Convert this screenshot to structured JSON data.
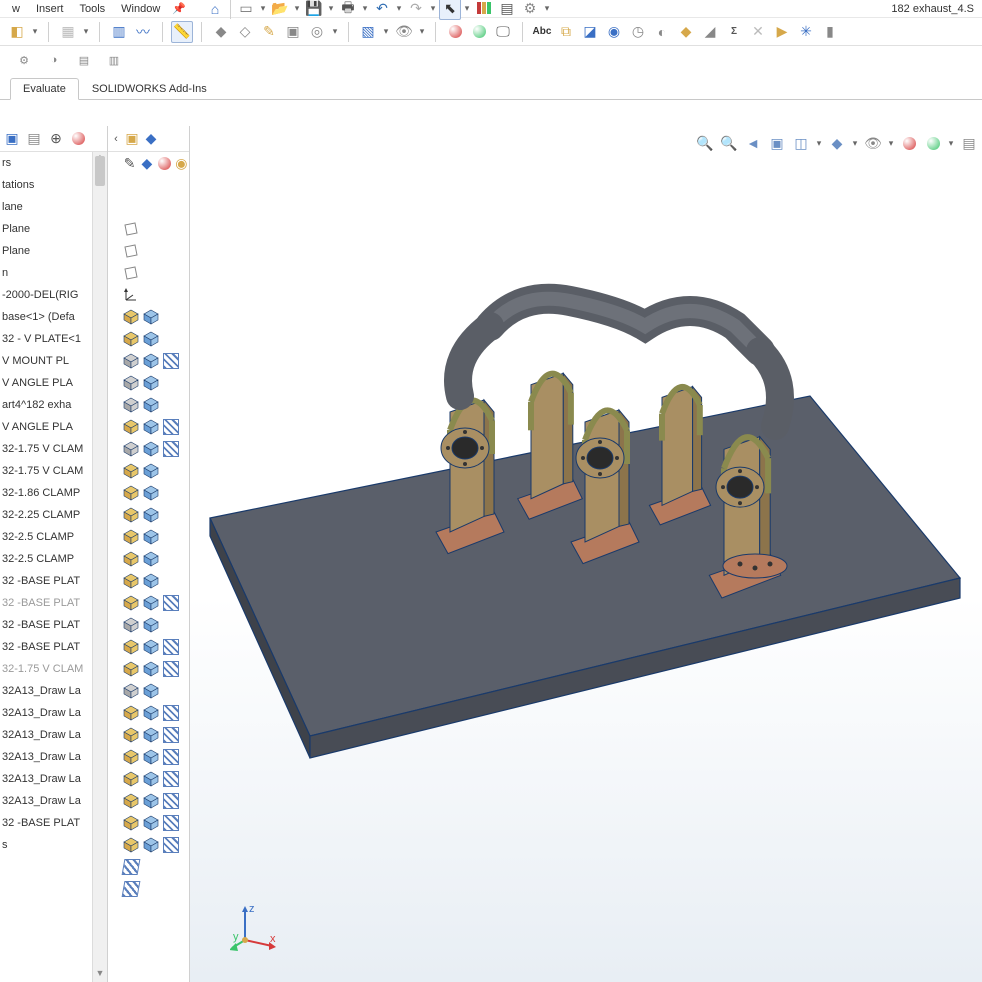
{
  "window": {
    "title": "182 exhaust_4.S"
  },
  "menubar": {
    "items": [
      "w",
      "Insert",
      "Tools",
      "Window"
    ]
  },
  "colors": {
    "bg": "#ffffff",
    "viewport_grad_top": "#ffffff",
    "viewport_grad_bot": "#e8eef4",
    "border": "#d0d0d0",
    "tree_text": "#333333",
    "muted_text": "#9a9a9a",
    "highlight_border": "#9cb4d8",
    "highlight_fill": "#e8f0fb"
  },
  "main_toolbar": [
    {
      "name": "home-icon",
      "glyph": "⌂",
      "dropdown": false,
      "color": "#3a6fc4"
    },
    {
      "name": "sep"
    },
    {
      "name": "new-doc-icon",
      "glyph": "▭",
      "dropdown": true,
      "color": "#777"
    },
    {
      "name": "open-folder-icon",
      "glyph": "📂",
      "dropdown": true,
      "color": "#d28a1b"
    },
    {
      "name": "save-icon",
      "glyph": "💾",
      "dropdown": true,
      "color": "#2f6db3"
    },
    {
      "name": "print-icon",
      "glyph": "🖶",
      "dropdown": true,
      "color": "#555"
    },
    {
      "name": "undo-icon",
      "glyph": "↶",
      "dropdown": true,
      "color": "#2f6db3"
    },
    {
      "name": "redo-icon",
      "glyph": "↷",
      "dropdown": true,
      "color": "#aaa"
    },
    {
      "name": "select-icon",
      "glyph": "⬉",
      "dropdown": true,
      "boxed": true,
      "color": "#333"
    },
    {
      "name": "rebuild-icon",
      "glyph": "❘",
      "dropdown": false,
      "color": "#c43a3a",
      "extra": "green"
    },
    {
      "name": "options-doc-icon",
      "glyph": "▤",
      "dropdown": false,
      "color": "#555"
    },
    {
      "name": "settings-gear-icon",
      "glyph": "⚙",
      "dropdown": true,
      "color": "#888"
    }
  ],
  "second_toolbar_groups": [
    [
      {
        "name": "edit-component-icon",
        "glyph": "◧",
        "color": "#d6a84a"
      },
      {
        "name": "flyout-dropdown",
        "glyph": "▾",
        "small": true
      }
    ],
    [
      {
        "name": "linear-pattern-icon",
        "glyph": "▦",
        "color": "#bbb"
      },
      {
        "name": "flyout-dropdown",
        "glyph": "▾",
        "small": true
      }
    ],
    [
      {
        "name": "mirror-icon",
        "glyph": "▥",
        "color": "#3a6fc4"
      },
      {
        "name": "sketch-curve-icon",
        "glyph": "〰",
        "color": "#3a6fc4"
      }
    ],
    [
      {
        "name": "measure-icon",
        "glyph": "📏",
        "color": "#d6a84a",
        "boxed": true
      }
    ],
    [
      {
        "name": "interference-icon",
        "glyph": "◆",
        "color": "#888"
      },
      {
        "name": "clearance-icon",
        "glyph": "◇",
        "color": "#888"
      },
      {
        "name": "mass-props-icon",
        "glyph": "✎",
        "color": "#d6a84a"
      },
      {
        "name": "section-props-icon",
        "glyph": "▣",
        "color": "#888"
      },
      {
        "name": "sensor-icon",
        "glyph": "◎",
        "color": "#888"
      },
      {
        "name": "flyout-dropdown",
        "glyph": "▾",
        "small": true
      }
    ],
    [
      {
        "name": "assembly-viz-icon",
        "glyph": "▧",
        "color": "#3a6fc4"
      },
      {
        "name": "flyout-dropdown",
        "glyph": "▾",
        "small": true
      },
      {
        "name": "hide-show-icon",
        "glyph": "👁",
        "color": "#888"
      },
      {
        "name": "flyout-dropdown",
        "glyph": "▾",
        "small": true
      }
    ],
    [
      {
        "name": "appearance-icon",
        "glyph": "●",
        "color": "#d63a3a",
        "grad": true
      },
      {
        "name": "scene-icon",
        "glyph": "●",
        "color": "#3ac46a",
        "grad": true
      },
      {
        "name": "display-icon",
        "glyph": "🖵",
        "color": "#555"
      }
    ],
    [
      {
        "name": "abc-spellcheck-icon",
        "glyph": "Abc",
        "text": true,
        "color": "#333"
      },
      {
        "name": "compare-icon",
        "glyph": "⧉",
        "color": "#d6a84a"
      },
      {
        "name": "check-icon",
        "glyph": "◪",
        "color": "#3a6fc4"
      },
      {
        "name": "deviation-icon",
        "glyph": "◉",
        "color": "#3a6fc4"
      },
      {
        "name": "clock-icon",
        "glyph": "◷",
        "color": "#888"
      },
      {
        "name": "zebra-icon",
        "glyph": "◐",
        "color": "#888"
      },
      {
        "name": "curvature-icon",
        "glyph": "◆",
        "color": "#d6a84a"
      },
      {
        "name": "draft-icon",
        "glyph": "◢",
        "color": "#888"
      },
      {
        "name": "sigma-icon",
        "glyph": "Σ",
        "color": "#555",
        "text": true
      },
      {
        "name": "sym-check-icon",
        "glyph": "✕",
        "color": "#bbb"
      },
      {
        "name": "import-diag-icon",
        "glyph": "▶",
        "color": "#d6a84a"
      },
      {
        "name": "thickness-icon",
        "glyph": "✳",
        "color": "#3a6fc4"
      },
      {
        "name": "compare-geom-icon",
        "glyph": "▮",
        "color": "#888"
      }
    ]
  ],
  "small_row": [
    {
      "name": "gear-small-icon",
      "glyph": "⚙"
    },
    {
      "name": "motor-icon",
      "glyph": "◑"
    },
    {
      "name": "link-icon",
      "glyph": "▤"
    },
    {
      "name": "spring-icon",
      "glyph": "▥"
    }
  ],
  "ribbon_tabs": [
    {
      "name": "tab-prev",
      "label": ""
    },
    {
      "name": "tab-evaluate",
      "label": "Evaluate",
      "active": true
    },
    {
      "name": "tab-addins",
      "label": "SOLIDWORKS Add-Ins",
      "active": false
    }
  ],
  "tree_header_icons": [
    {
      "name": "feature-manager-icon",
      "glyph": "▣",
      "color": "#3a6fc4"
    },
    {
      "name": "property-manager-icon",
      "glyph": "▤",
      "color": "#888"
    },
    {
      "name": "config-manager-icon",
      "glyph": "⊕",
      "color": "#555"
    },
    {
      "name": "appearances-manager-icon",
      "glyph": "●",
      "color": "#d63a3a",
      "grad": true
    }
  ],
  "iconcol_header": [
    {
      "name": "chevron-left-icon",
      "glyph": "‹"
    },
    {
      "name": "display-pane-config-icon",
      "glyph": "▣",
      "color": "#d6a84a"
    },
    {
      "name": "display-pane-cube-icon",
      "glyph": "◆",
      "color": "#3a6fc4"
    }
  ],
  "iconcol_sub": [
    {
      "name": "pencil-small-icon",
      "glyph": "✎",
      "color": "#555"
    },
    {
      "name": "cube-toggle-icon",
      "glyph": "◆",
      "color": "#3a6fc4"
    },
    {
      "name": "sphere-toggle-icon",
      "glyph": "●",
      "color": "#d63a3a",
      "grad": true
    },
    {
      "name": "eye-toggle-icon",
      "glyph": "◉",
      "color": "#d6a84a"
    }
  ],
  "tree": [
    {
      "label": "rs",
      "muted": false,
      "icons": []
    },
    {
      "label": "tations",
      "muted": false,
      "icons": []
    },
    {
      "label": "lane",
      "muted": false,
      "icons": [
        "plane"
      ]
    },
    {
      "label": "Plane",
      "muted": false,
      "icons": [
        "plane"
      ]
    },
    {
      "label": "Plane",
      "muted": false,
      "icons": [
        "plane"
      ]
    },
    {
      "label": "n",
      "muted": false,
      "icons": [
        "origin"
      ]
    },
    {
      "label": "-2000-DEL(RIG",
      "muted": false,
      "icons": [
        "yellow",
        "blue"
      ]
    },
    {
      "label": "base<1> (Defa",
      "muted": false,
      "icons": [
        "yellow",
        "blue"
      ]
    },
    {
      "label": "32 - V PLATE<1",
      "muted": false,
      "icons": [
        "gray",
        "blue",
        "hatch"
      ]
    },
    {
      "label": "V MOUNT PL",
      "muted": false,
      "icons": [
        "gray",
        "blue"
      ]
    },
    {
      "label": "V ANGLE PLA",
      "muted": false,
      "icons": [
        "gray",
        "blue"
      ]
    },
    {
      "label": "art4^182 exha",
      "muted": false,
      "icons": [
        "yellow",
        "blue",
        "hatch"
      ]
    },
    {
      "label": "V ANGLE PLA",
      "muted": false,
      "icons": [
        "gray",
        "blue",
        "hatch"
      ]
    },
    {
      "label": "32-1.75 V CLAM",
      "muted": false,
      "icons": [
        "yellow",
        "blue"
      ]
    },
    {
      "label": "32-1.75 V CLAM",
      "muted": false,
      "icons": [
        "yellow",
        "blue"
      ]
    },
    {
      "label": "32-1.86 CLAMP",
      "muted": false,
      "icons": [
        "yellow",
        "blue"
      ]
    },
    {
      "label": "32-2.25 CLAMP",
      "muted": false,
      "icons": [
        "yellow",
        "blue"
      ]
    },
    {
      "label": "32-2.5 CLAMP",
      "muted": false,
      "icons": [
        "yellow",
        "blue"
      ]
    },
    {
      "label": "32-2.5 CLAMP",
      "muted": false,
      "icons": [
        "yellow",
        "blue"
      ]
    },
    {
      "label": "32 -BASE PLAT",
      "muted": false,
      "icons": [
        "yellow",
        "blue",
        "hatch"
      ]
    },
    {
      "label": "32 -BASE PLAT",
      "muted": true,
      "icons": [
        "gray",
        "blue"
      ]
    },
    {
      "label": "32 -BASE PLAT",
      "muted": false,
      "icons": [
        "yellow",
        "blue",
        "hatch"
      ]
    },
    {
      "label": "32 -BASE PLAT",
      "muted": false,
      "icons": [
        "yellow",
        "blue",
        "hatch"
      ]
    },
    {
      "label": "32-1.75 V CLAM",
      "muted": true,
      "icons": [
        "gray",
        "blue"
      ]
    },
    {
      "label": "32A13_Draw La",
      "muted": false,
      "icons": [
        "yellow",
        "blue",
        "hatch"
      ]
    },
    {
      "label": "32A13_Draw La",
      "muted": false,
      "icons": [
        "yellow",
        "blue",
        "hatch"
      ]
    },
    {
      "label": "32A13_Draw La",
      "muted": false,
      "icons": [
        "yellow",
        "blue",
        "hatch"
      ]
    },
    {
      "label": "32A13_Draw La",
      "muted": false,
      "icons": [
        "yellow",
        "blue",
        "hatch"
      ]
    },
    {
      "label": "32A13_Draw La",
      "muted": false,
      "icons": [
        "yellow",
        "blue",
        "hatch"
      ]
    },
    {
      "label": "32A13_Draw La",
      "muted": false,
      "icons": [
        "yellow",
        "blue",
        "hatch"
      ]
    },
    {
      "label": "32 -BASE PLAT",
      "muted": false,
      "icons": [
        "yellow",
        "blue",
        "hatch"
      ]
    },
    {
      "label": "s",
      "muted": false,
      "icons": [
        "hatchpair"
      ]
    },
    {
      "label": "",
      "muted": false,
      "icons": [
        "hatchpair"
      ]
    }
  ],
  "viewport_toolbar": [
    {
      "name": "zoom-fit-icon",
      "glyph": "🔍",
      "color": "#6a8fc4"
    },
    {
      "name": "zoom-area-icon",
      "glyph": "🔍",
      "color": "#6a8fc4"
    },
    {
      "name": "prev-view-icon",
      "glyph": "◄",
      "color": "#6a8fc4"
    },
    {
      "name": "section-view-icon",
      "glyph": "▣",
      "color": "#6a8fc4"
    },
    {
      "name": "view-orient-icon",
      "glyph": "◫",
      "color": "#6a8fc4"
    },
    {
      "name": "dropdown",
      "glyph": "▾",
      "small": true
    },
    {
      "name": "display-style-icon",
      "glyph": "◆",
      "color": "#6a8fc4"
    },
    {
      "name": "dropdown",
      "glyph": "▾",
      "small": true
    },
    {
      "name": "hide-show-items-icon",
      "glyph": "👁",
      "color": "#888"
    },
    {
      "name": "dropdown",
      "glyph": "▾",
      "small": true
    },
    {
      "name": "edit-appearance-vp-icon",
      "glyph": "●",
      "color": "#d63a3a",
      "grad": true
    },
    {
      "name": "apply-scene-vp-icon",
      "glyph": "●",
      "color": "#3ac46a",
      "grad": true
    },
    {
      "name": "dropdown",
      "glyph": "▾",
      "small": true
    },
    {
      "name": "view-settings-icon",
      "glyph": "▤",
      "color": "#888"
    }
  ],
  "triad": {
    "x_color": "#d63a3a",
    "y_color": "#3ac46a",
    "z_color": "#3a6fc4",
    "labels": [
      "x",
      "y",
      "z"
    ]
  },
  "model": {
    "plate_top_color": "#5a5f6a",
    "plate_side_color": "#3e424a",
    "edge_color": "#1a3a6a",
    "bracket_color": "#a98f63",
    "bracket_shadow": "#8c744b",
    "base_color": "#b57a5d",
    "clamp_color": "#8a8a4e",
    "flange_color": "#6a6a6a",
    "pipe_color": "#5a5e66",
    "pipe_highlight": "#7a7e86"
  }
}
